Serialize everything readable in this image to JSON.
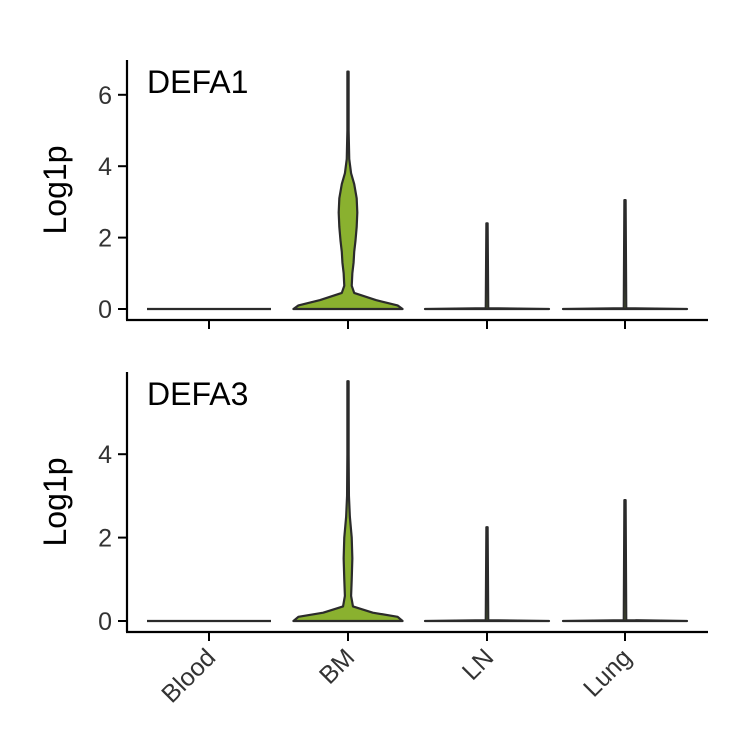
{
  "chart_data": {
    "type": "violin",
    "categories": [
      "Blood",
      "BM",
      "LN",
      "Lung"
    ],
    "fill_color": "#8ab12f",
    "outline_color": "#2b2b2b",
    "panels": [
      {
        "title": "DEFA1",
        "ylabel": "Log1p",
        "ylim": [
          -0.3,
          7.0
        ],
        "yticks": [
          0,
          2,
          4,
          6
        ],
        "violins": [
          {
            "category": "Blood",
            "max": 0,
            "profile": []
          },
          {
            "category": "BM",
            "max": 6.65,
            "profile": [
              [
                0,
                0.88
              ],
              [
                0.1,
                0.8
              ],
              [
                0.25,
                0.45
              ],
              [
                0.45,
                0.1
              ],
              [
                0.65,
                0.06
              ],
              [
                1.0,
                0.07
              ],
              [
                1.3,
                0.09
              ],
              [
                1.6,
                0.1
              ],
              [
                1.9,
                0.12
              ],
              [
                2.3,
                0.14
              ],
              [
                2.7,
                0.15
              ],
              [
                3.1,
                0.14
              ],
              [
                3.5,
                0.1
              ],
              [
                3.8,
                0.05
              ],
              [
                4.2,
                0.02
              ],
              [
                5.0,
                0.01
              ],
              [
                6.65,
                0.01
              ]
            ]
          },
          {
            "category": "LN",
            "max": 2.4,
            "profile": [
              [
                0,
                1.0
              ],
              [
                0.02,
                0.02
              ],
              [
                2.4,
                0.01
              ]
            ]
          },
          {
            "category": "Lung",
            "max": 3.05,
            "profile": [
              [
                0,
                1.0
              ],
              [
                0.02,
                0.02
              ],
              [
                3.05,
                0.01
              ]
            ]
          }
        ]
      },
      {
        "title": "DEFA3",
        "ylabel": "Log1p",
        "ylim": [
          -0.3,
          5.9
        ],
        "yticks": [
          0,
          2,
          4
        ],
        "violins": [
          {
            "category": "Blood",
            "max": 0,
            "profile": []
          },
          {
            "category": "BM",
            "max": 5.75,
            "profile": [
              [
                0,
                0.88
              ],
              [
                0.1,
                0.8
              ],
              [
                0.2,
                0.4
              ],
              [
                0.35,
                0.08
              ],
              [
                0.6,
                0.05
              ],
              [
                1.0,
                0.06
              ],
              [
                1.5,
                0.07
              ],
              [
                2.0,
                0.06
              ],
              [
                2.5,
                0.03
              ],
              [
                3.0,
                0.015
              ],
              [
                4.0,
                0.01
              ],
              [
                5.75,
                0.01
              ]
            ]
          },
          {
            "category": "LN",
            "max": 2.25,
            "profile": [
              [
                0,
                1.0
              ],
              [
                0.02,
                0.02
              ],
              [
                2.25,
                0.01
              ]
            ]
          },
          {
            "category": "Lung",
            "max": 2.9,
            "profile": [
              [
                0,
                1.0
              ],
              [
                0.02,
                0.02
              ],
              [
                2.9,
                0.01
              ]
            ]
          }
        ]
      }
    ]
  }
}
